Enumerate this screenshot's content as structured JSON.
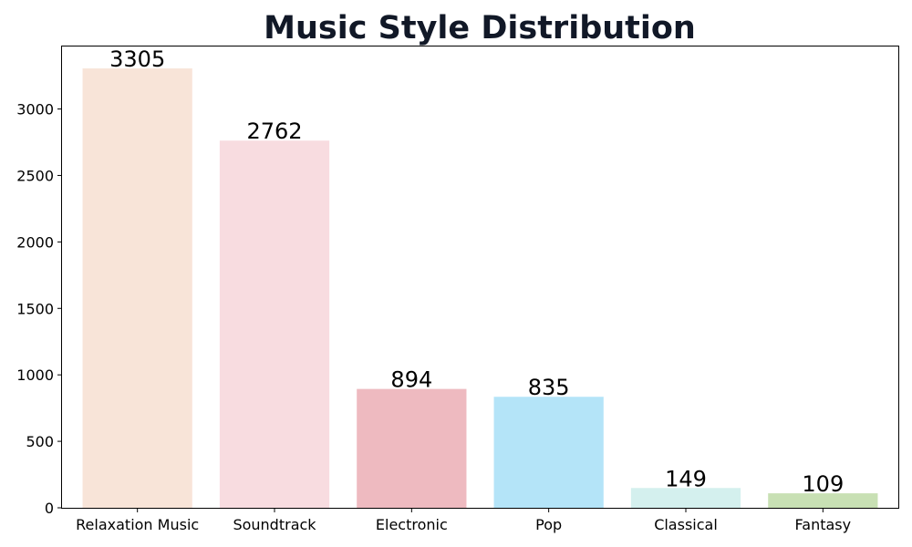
{
  "chart_data": {
    "type": "bar",
    "title": "Music Style Distribution",
    "xlabel": "",
    "ylabel": "",
    "categories": [
      "Relaxation Music",
      "Soundtrack",
      "Electronic",
      "Pop",
      "Classical",
      "Fantasy"
    ],
    "values": [
      3305,
      2762,
      894,
      835,
      149,
      109
    ],
    "data_labels": [
      "3305",
      "2762",
      "894",
      "835",
      "149",
      "109"
    ],
    "colors": [
      "#f8e4d8",
      "#f8dce0",
      "#eebac0",
      "#b4e4f8",
      "#d4f0ee",
      "#c8e0b4"
    ],
    "ylim": [
      0,
      3470
    ],
    "yticks": [
      0,
      500,
      1000,
      1500,
      2000,
      2500,
      3000
    ],
    "ytick_labels": [
      "0",
      "500",
      "1000",
      "1500",
      "2000",
      "2500",
      "3000"
    ],
    "grid": false,
    "legend": "none"
  }
}
